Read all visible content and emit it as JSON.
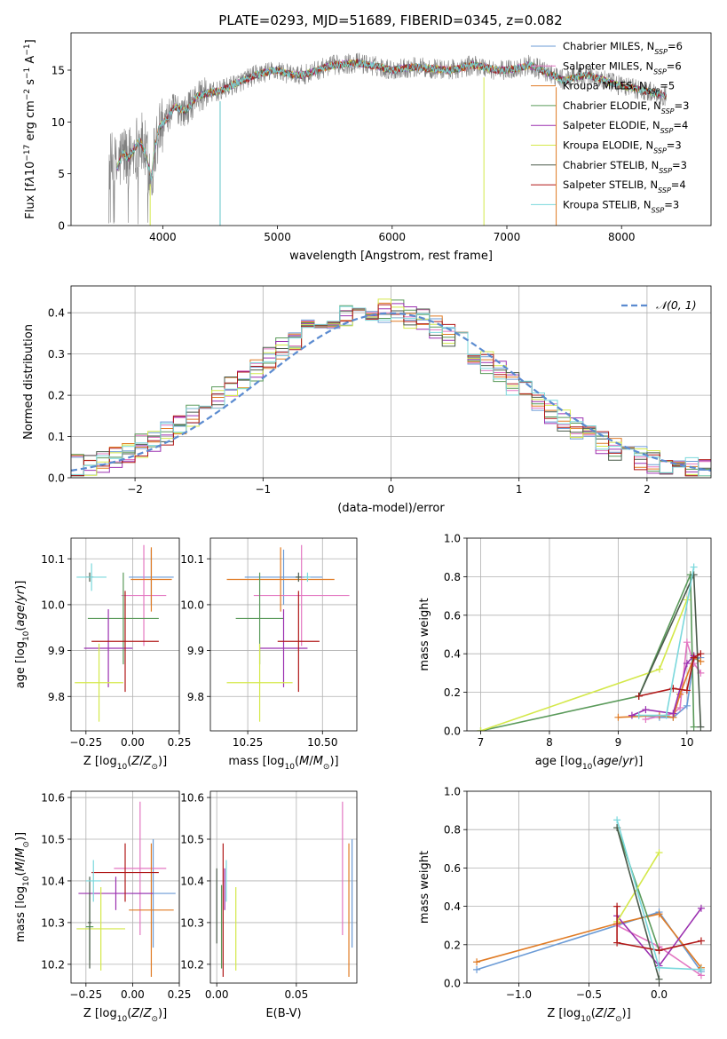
{
  "figure": {
    "title": "PLATE=0293, MJD=51689, FIBERID=0345, z=0.082"
  },
  "models": [
    {
      "label": "Chabrier MILES, N$_{SSP}$=6",
      "base": "Chabrier MILES, N",
      "sub": "SSP",
      "tail": "=6",
      "color": "#6b9bd6"
    },
    {
      "label": "Salpeter MILES, N$_{SSP}$=6",
      "base": "Salpeter MILES, N",
      "sub": "SSP",
      "tail": "=6",
      "color": "#e377c2"
    },
    {
      "label": "Kroupa MILES, N$_{SSP}$=5",
      "base": "Kroupa MILES, N",
      "sub": "SSP",
      "tail": "=5",
      "color": "#e07b24"
    },
    {
      "label": "Chabrier ELODIE, N$_{SSP}$=3",
      "base": "Chabrier ELODIE, N",
      "sub": "SSP",
      "tail": "=3",
      "color": "#5a9a5a"
    },
    {
      "label": "Salpeter ELODIE, N$_{SSP}$=4",
      "base": "Salpeter ELODIE, N",
      "sub": "SSP",
      "tail": "=4",
      "color": "#9b30b0"
    },
    {
      "label": "Kroupa ELODIE, N$_{SSP}$=3",
      "base": "Kroupa ELODIE, N",
      "sub": "SSP",
      "tail": "=3",
      "color": "#d4e84a"
    },
    {
      "label": "Chabrier STELIB, N$_{SSP}$=3",
      "base": "Chabrier STELIB, N",
      "sub": "SSP",
      "tail": "=3",
      "color": "#4a5a4a"
    },
    {
      "label": "Salpeter STELIB, N$_{SSP}$=4",
      "base": "Salpeter STELIB, N",
      "sub": "SSP",
      "tail": "=4",
      "color": "#b01818"
    },
    {
      "label": "Kroupa STELIB, N$_{SSP}$=3",
      "base": "Kroupa STELIB, N",
      "sub": "SSP",
      "tail": "=3",
      "color": "#7ad8dc"
    }
  ],
  "chart_data": [
    {
      "id": "spectrum",
      "type": "line",
      "xlabel": "wavelength [Angstrom, rest frame]",
      "ylabel_html": "Flux [f<tspan font-style=\"italic\">λ</tspan>10<tspan baseline-shift=\"super\" font-size=\"9\">−17</tspan> erg cm<tspan baseline-shift=\"super\" font-size=\"9\">−2</tspan> s<tspan baseline-shift=\"super\" font-size=\"9\">−1</tspan> A<tspan baseline-shift=\"super\" font-size=\"9\">−1</tspan>]",
      "xlim": [
        3200,
        8780
      ],
      "ylim": [
        0,
        18.6
      ],
      "xticks": [
        4000,
        5000,
        6000,
        7000,
        8000
      ],
      "xtick_labels": [
        "4000",
        "5000",
        "6000",
        "7000",
        "8000"
      ],
      "yticks": [
        0,
        5,
        10,
        15
      ],
      "ytick_labels": [
        "0",
        "5",
        "10",
        "15"
      ],
      "grid": false,
      "legend": "upper right",
      "data_color": "#808080",
      "continuum": [
        [
          3530,
          6.0
        ],
        [
          3600,
          5.5
        ],
        [
          3650,
          7.0
        ],
        [
          3700,
          6.5
        ],
        [
          3800,
          8.2
        ],
        [
          3850,
          7.0
        ],
        [
          3900,
          4.5
        ],
        [
          3930,
          7.5
        ],
        [
          3970,
          9.5
        ],
        [
          4050,
          10.5
        ],
        [
          4100,
          11.5
        ],
        [
          4200,
          11.0
        ],
        [
          4300,
          12.5
        ],
        [
          4400,
          12.8
        ],
        [
          4500,
          13.0
        ],
        [
          4600,
          13.5
        ],
        [
          4700,
          14.0
        ],
        [
          4800,
          14.5
        ],
        [
          4900,
          14.8
        ],
        [
          5000,
          15.0
        ],
        [
          5100,
          14.6
        ],
        [
          5200,
          14.5
        ],
        [
          5300,
          14.8
        ],
        [
          5400,
          15.2
        ],
        [
          5500,
          15.5
        ],
        [
          5600,
          15.6
        ],
        [
          5700,
          15.7
        ],
        [
          5800,
          15.5
        ],
        [
          5900,
          15.3
        ],
        [
          6000,
          15.0
        ],
        [
          6100,
          15.2
        ],
        [
          6200,
          15.3
        ],
        [
          6300,
          15.2
        ],
        [
          6400,
          15.1
        ],
        [
          6500,
          15.0
        ],
        [
          6600,
          15.2
        ],
        [
          6700,
          15.5
        ],
        [
          6800,
          15.3
        ],
        [
          6900,
          15.0
        ],
        [
          7000,
          15.0
        ],
        [
          7100,
          15.2
        ],
        [
          7200,
          15.5
        ],
        [
          7300,
          15.0
        ],
        [
          7400,
          14.5
        ],
        [
          7500,
          14.0
        ],
        [
          7600,
          14.3
        ],
        [
          7700,
          14.5
        ],
        [
          7800,
          14.2
        ],
        [
          7900,
          13.8
        ],
        [
          8000,
          13.5
        ],
        [
          8100,
          13.3
        ],
        [
          8200,
          13.0
        ],
        [
          8300,
          12.8
        ],
        [
          8390,
          12.5
        ]
      ],
      "model_end": [
        7430,
        7430,
        7430,
        8390,
        8390,
        8390,
        8390,
        8390,
        8390
      ]
    },
    {
      "id": "residuals",
      "type": "step",
      "xlabel": "(data-model)/error",
      "ylabel": "Normed distribution",
      "xlim": [
        -2.5,
        2.5
      ],
      "ylim": [
        0,
        0.465
      ],
      "xticks": [
        -2,
        -1,
        0,
        1,
        2
      ],
      "xtick_labels": [
        "−2",
        "−1",
        "0",
        "1",
        "2"
      ],
      "yticks": [
        0,
        0.1,
        0.2,
        0.3,
        0.4
      ],
      "ytick_labels": [
        "0.0",
        "0.1",
        "0.2",
        "0.3",
        "0.4"
      ],
      "grid": true,
      "legend": "upper right",
      "bin_width": 0.1,
      "reference_label": "𝒩(0, 1)",
      "reference_color": "#5b8bd0"
    },
    {
      "id": "z_age",
      "type": "errorbar",
      "xlabel_html": "Z [log<tspan baseline-shift=\"sub\" font-size=\"9\">10</tspan>(<tspan font-style=\"italic\">Z</tspan>/<tspan font-style=\"italic\">Z</tspan><tspan baseline-shift=\"sub\" font-size=\"9\">⊙</tspan>)]",
      "ylabel_html": "age  [log<tspan baseline-shift=\"sub\" font-size=\"9\">10</tspan>(<tspan font-style=\"italic\">age</tspan>/<tspan font-style=\"italic\">yr</tspan>)]",
      "xlim": [
        -0.33,
        0.25
      ],
      "ylim": [
        9.725,
        10.145
      ],
      "xticks": [
        -0.25,
        0,
        0.25
      ],
      "xtick_labels": [
        "−0.25",
        "0.00",
        "0.25"
      ],
      "yticks": [
        9.8,
        9.9,
        10.0,
        10.1
      ],
      "ytick_labels": [
        "9.8",
        "9.9",
        "10.0",
        "10.1"
      ],
      "grid": true,
      "points": [
        {
          "x": 0.1,
          "xerr": 0.12,
          "y": 10.06,
          "yerr": 0.06
        },
        {
          "x": 0.06,
          "xerr": 0.12,
          "y": 10.02,
          "yerr": 0.11
        },
        {
          "x": 0.1,
          "xerr": 0.11,
          "y": 10.055,
          "yerr": 0.07
        },
        {
          "x": -0.05,
          "xerr": 0.19,
          "y": 9.97,
          "yerr": 0.1
        },
        {
          "x": -0.13,
          "xerr": 0.13,
          "y": 9.905,
          "yerr": 0.085
        },
        {
          "x": -0.18,
          "xerr": 0.13,
          "y": 9.83,
          "yerr": 0.085
        },
        {
          "x": -0.23,
          "xerr": 0.02,
          "y": 10.06,
          "yerr": 0.01
        },
        {
          "x": -0.04,
          "xerr": 0.18,
          "y": 9.92,
          "yerr": 0.11
        },
        {
          "x": -0.22,
          "xerr": 0.08,
          "y": 10.06,
          "yerr": 0.03
        }
      ]
    },
    {
      "id": "mass_age",
      "type": "errorbar",
      "xlabel_html": "mass [log<tspan baseline-shift=\"sub\" font-size=\"9\">10</tspan>(<tspan font-style=\"italic\">M</tspan>/<tspan font-style=\"italic\">M</tspan><tspan baseline-shift=\"sub\" font-size=\"9\">⊙</tspan>)]",
      "xlim": [
        10.125,
        10.615
      ],
      "ylim": [
        9.725,
        10.145
      ],
      "xticks": [
        10.25,
        10.5
      ],
      "xtick_labels": [
        "10.25",
        "10.50"
      ],
      "yticks": [
        9.8,
        9.9,
        10.0,
        10.1
      ],
      "ytick_labels": [
        "9.8",
        "9.9",
        "10.0",
        "10.1"
      ],
      "grid": true,
      "points": [
        {
          "x": 10.37,
          "xerr": 0.13,
          "y": 10.06,
          "yerr": 0.06
        },
        {
          "x": 10.43,
          "xerr": 0.16,
          "y": 10.02,
          "yerr": 0.11
        },
        {
          "x": 10.36,
          "xerr": 0.18,
          "y": 10.055,
          "yerr": 0.07
        },
        {
          "x": 10.29,
          "xerr": 0.08,
          "y": 9.97,
          "yerr": 0.1
        },
        {
          "x": 10.37,
          "xerr": 0.08,
          "y": 9.905,
          "yerr": 0.085
        },
        {
          "x": 10.29,
          "xerr": 0.11,
          "y": 9.83,
          "yerr": 0.085
        },
        {
          "x": 10.42,
          "xerr": 0.01,
          "y": 10.06,
          "yerr": 0.01
        },
        {
          "x": 10.42,
          "xerr": 0.07,
          "y": 9.92,
          "yerr": 0.11
        },
        {
          "x": 10.45,
          "xerr": 0.01,
          "y": 10.06,
          "yerr": 0.01
        }
      ]
    },
    {
      "id": "z_mass",
      "type": "errorbar",
      "xlabel_html": "Z [log<tspan baseline-shift=\"sub\" font-size=\"9\">10</tspan>(<tspan font-style=\"italic\">Z</tspan>/<tspan font-style=\"italic\">Z</tspan><tspan baseline-shift=\"sub\" font-size=\"9\">⊙</tspan>)]",
      "ylabel_html": "mass [log<tspan baseline-shift=\"sub\" font-size=\"9\">10</tspan>(<tspan font-style=\"italic\">M</tspan>/<tspan font-style=\"italic\">M</tspan><tspan baseline-shift=\"sub\" font-size=\"9\">⊙</tspan>)]",
      "xlim": [
        -0.33,
        0.25
      ],
      "ylim": [
        10.155,
        10.615
      ],
      "xticks": [
        -0.25,
        0,
        0.25
      ],
      "xtick_labels": [
        "−0.25",
        "0.00",
        "0.25"
      ],
      "yticks": [
        10.2,
        10.3,
        10.4,
        10.5,
        10.6
      ],
      "ytick_labels": [
        "10.2",
        "10.3",
        "10.4",
        "10.5",
        "10.6"
      ],
      "grid": true,
      "points": [
        {
          "x": 0.11,
          "xerr": 0.12,
          "y": 10.37,
          "yerr": 0.13
        },
        {
          "x": 0.04,
          "xerr": 0.14,
          "y": 10.43,
          "yerr": 0.16
        },
        {
          "x": 0.1,
          "xerr": 0.12,
          "y": 10.33,
          "yerr": 0.16
        },
        {
          "x": -0.23,
          "xerr": 0.02,
          "y": 10.29,
          "yerr": 0.08
        },
        {
          "x": -0.09,
          "xerr": 0.2,
          "y": 10.37,
          "yerr": 0.04
        },
        {
          "x": -0.17,
          "xerr": 0.13,
          "y": 10.285,
          "yerr": 0.1
        },
        {
          "x": -0.23,
          "xerr": 0.01,
          "y": 10.3,
          "yerr": 0.11
        },
        {
          "x": -0.04,
          "xerr": 0.18,
          "y": 10.42,
          "yerr": 0.07
        },
        {
          "x": -0.21,
          "xerr": 0.04,
          "y": 10.4,
          "yerr": 0.05
        }
      ]
    },
    {
      "id": "ebv_mass",
      "type": "errorbar",
      "xlabel": "E(B-V)",
      "xlim": [
        -0.004,
        0.088
      ],
      "ylim": [
        10.155,
        10.615
      ],
      "xticks": [
        0,
        0.05
      ],
      "xtick_labels": [
        "0.00",
        "0.05"
      ],
      "yticks": [
        10.2,
        10.3,
        10.4,
        10.5,
        10.6
      ],
      "ytick_labels": [
        "10.2",
        "10.3",
        "10.4",
        "10.5",
        "10.6"
      ],
      "grid": true,
      "points": [
        {
          "x": 0.085,
          "xerr": 0.0,
          "y": 10.37,
          "yerr": 0.13
        },
        {
          "x": 0.079,
          "xerr": 0.0,
          "y": 10.43,
          "yerr": 0.16
        },
        {
          "x": 0.083,
          "xerr": 0.0,
          "y": 10.33,
          "yerr": 0.16
        },
        {
          "x": 0.003,
          "xerr": 0.0,
          "y": 10.29,
          "yerr": 0.1
        },
        {
          "x": 0.005,
          "xerr": 0.0,
          "y": 10.38,
          "yerr": 0.05
        },
        {
          "x": 0.012,
          "xerr": 0.0,
          "y": 10.285,
          "yerr": 0.1
        },
        {
          "x": 0.0,
          "xerr": 0.0,
          "y": 10.34,
          "yerr": 0.09
        },
        {
          "x": 0.004,
          "xerr": 0.0,
          "y": 10.33,
          "yerr": 0.16
        },
        {
          "x": 0.006,
          "xerr": 0.0,
          "y": 10.4,
          "yerr": 0.05
        }
      ]
    },
    {
      "id": "age_weight",
      "type": "line",
      "xlabel_html": "age  [log<tspan baseline-shift=\"sub\" font-size=\"9\">10</tspan>(<tspan font-style=\"italic\">age</tspan>/<tspan font-style=\"italic\">yr</tspan>)]",
      "ylabel": "mass weight",
      "xlim": [
        6.8,
        10.35
      ],
      "ylim": [
        0,
        1
      ],
      "xticks": [
        7,
        8,
        9,
        10
      ],
      "xtick_labels": [
        "7",
        "8",
        "9",
        "10"
      ],
      "yticks": [
        0,
        0.2,
        0.4,
        0.6,
        0.8,
        1.0
      ],
      "ytick_labels": [
        "0.0",
        "0.2",
        "0.4",
        "0.6",
        "0.8",
        "1.0"
      ],
      "grid": true,
      "series": [
        [
          [
            9.3,
            0.08
          ],
          [
            9.6,
            0.07
          ],
          [
            9.8,
            0.07
          ],
          [
            10.0,
            0.13
          ],
          [
            10.1,
            0.37
          ],
          [
            10.2,
            0.38
          ]
        ],
        [
          [
            9.4,
            0.06
          ],
          [
            9.8,
            0.09
          ],
          [
            9.9,
            0.12
          ],
          [
            10.0,
            0.46
          ],
          [
            10.1,
            0.35
          ],
          [
            10.2,
            0.3
          ]
        ],
        [
          [
            9.0,
            0.07
          ],
          [
            9.6,
            0.08
          ],
          [
            9.8,
            0.07
          ],
          [
            9.9,
            0.19
          ],
          [
            10.1,
            0.38
          ],
          [
            10.2,
            0.36
          ]
        ],
        [
          [
            7.0,
            0.0
          ],
          [
            9.3,
            0.18
          ],
          [
            10.05,
            0.81
          ],
          [
            10.1,
            0.02
          ]
        ],
        [
          [
            9.2,
            0.08
          ],
          [
            9.4,
            0.11
          ],
          [
            9.8,
            0.09
          ],
          [
            10.0,
            0.35
          ],
          [
            10.1,
            0.39
          ]
        ],
        [
          [
            7.0,
            0.0
          ],
          [
            9.6,
            0.32
          ],
          [
            10.0,
            0.68
          ]
        ],
        [
          [
            9.3,
            0.18
          ],
          [
            10.1,
            0.81
          ],
          [
            10.2,
            0.02
          ]
        ],
        [
          [
            9.3,
            0.18
          ],
          [
            9.8,
            0.22
          ],
          [
            10.0,
            0.21
          ],
          [
            10.1,
            0.38
          ],
          [
            10.2,
            0.4
          ]
        ],
        [
          [
            9.3,
            0.08
          ],
          [
            9.7,
            0.08
          ],
          [
            10.1,
            0.85
          ]
        ]
      ]
    },
    {
      "id": "z_weight",
      "type": "line",
      "xlabel_html": "Z [log<tspan baseline-shift=\"sub\" font-size=\"9\">10</tspan>(<tspan font-style=\"italic\">Z</tspan>/<tspan font-style=\"italic\">Z</tspan><tspan baseline-shift=\"sub\" font-size=\"9\">⊙</tspan>)]",
      "ylabel": "mass weight",
      "xlim": [
        -1.37,
        0.37
      ],
      "ylim": [
        0,
        1
      ],
      "xticks": [
        -1.0,
        -0.5,
        0.0
      ],
      "xtick_labels": [
        "−1.0",
        "−0.5",
        "0.0"
      ],
      "yticks": [
        0,
        0.2,
        0.4,
        0.6,
        0.8,
        1.0
      ],
      "ytick_labels": [
        "0.0",
        "0.2",
        "0.4",
        "0.6",
        "0.8",
        "1.0"
      ],
      "grid": true,
      "series": [
        [
          [
            -1.3,
            0.07
          ],
          [
            0.0,
            0.37
          ],
          [
            0.3,
            0.06
          ]
        ],
        [
          [
            -0.3,
            0.3
          ],
          [
            0.0,
            0.19
          ],
          [
            0.3,
            0.04
          ]
        ],
        [
          [
            -1.3,
            0.11
          ],
          [
            -0.3,
            0.31
          ],
          [
            0.0,
            0.36
          ],
          [
            0.3,
            0.08
          ]
        ],
        [
          [
            -0.3,
            0.81
          ],
          [
            0.0,
            0.17
          ]
        ],
        [
          [
            -0.3,
            0.35
          ],
          [
            0.0,
            0.09
          ],
          [
            0.3,
            0.39
          ]
        ],
        [
          [
            -0.3,
            0.32
          ],
          [
            0.0,
            0.68
          ]
        ],
        [
          [
            -0.3,
            0.81
          ],
          [
            0.0,
            0.02
          ]
        ],
        [
          [
            -0.3,
            0.4
          ],
          [
            -0.3,
            0.21
          ],
          [
            0.0,
            0.17
          ],
          [
            0.3,
            0.22
          ]
        ],
        [
          [
            -0.3,
            0.85
          ],
          [
            0.0,
            0.08
          ],
          [
            0.3,
            0.07
          ]
        ]
      ]
    }
  ]
}
